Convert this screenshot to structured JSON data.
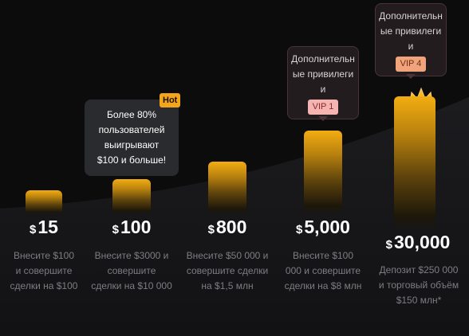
{
  "colors": {
    "accent": "#f3a51b",
    "background": "#0c0c0d",
    "vip1_badge": "#f3b4b2",
    "vip4_badge": "#f1a37c"
  },
  "tiers": [
    {
      "currency": "$",
      "amount": "15",
      "description": "Внесите $100 и совершите сделки на $100"
    },
    {
      "currency": "$",
      "amount": "100",
      "description": "Внесите $3000 и совершите сделки на $10 000",
      "tooltip": {
        "text": "Более 80% пользователей выигрывают $100 и больше!",
        "tag": "Hot"
      }
    },
    {
      "currency": "$",
      "amount": "800",
      "description": "Внесите $50 000 и совершите сделки на $1,5 млн"
    },
    {
      "currency": "$",
      "amount": "5,000",
      "description": "Внесите $100 000 и совершите сделки на $8 млн",
      "tooltip": {
        "text": "Дополнительные привилегии",
        "badge": "VIP 1"
      }
    },
    {
      "currency": "$",
      "amount": "30,000",
      "description": "Депозит $250 000 и торговый объём $150 млн*",
      "tooltip": {
        "text": "Дополнительные привилегии",
        "badge": "VIP 4"
      },
      "icon": "crown-icon"
    }
  ]
}
